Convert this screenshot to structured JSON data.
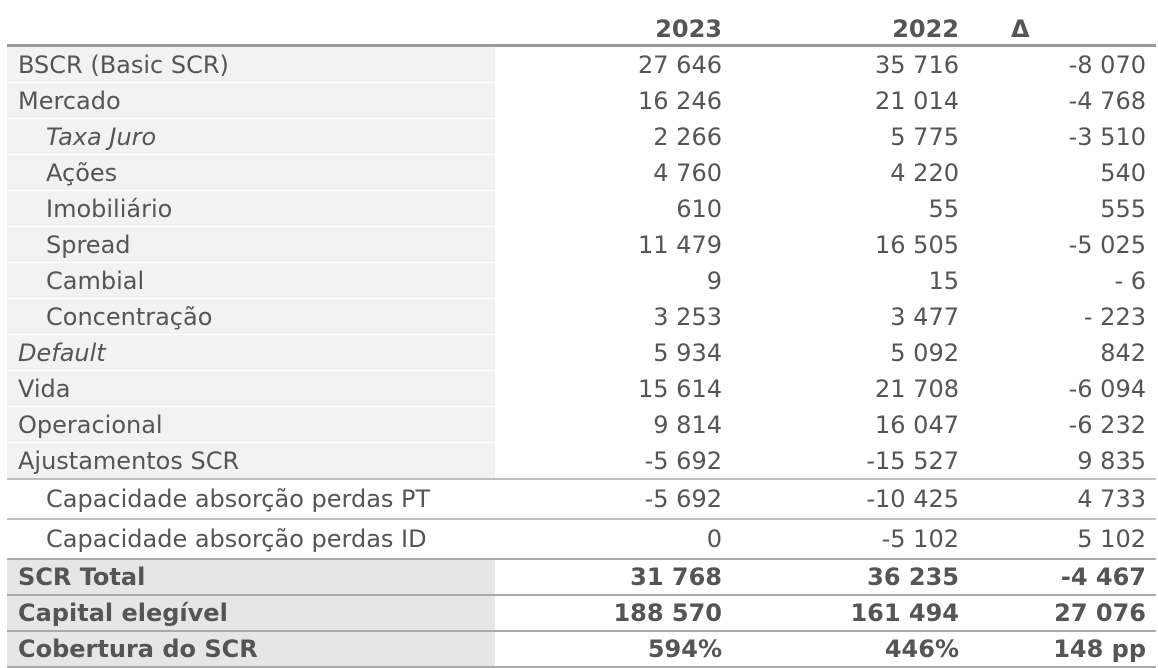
{
  "header": {
    "label": "",
    "y2023": "2023",
    "y2022": "2022",
    "delta": "Δ"
  },
  "rows": [
    {
      "label": "BSCR (Basic SCR)",
      "y2023": "27 646",
      "y2022": "35 716",
      "delta": "-8 070"
    },
    {
      "label": "Mercado",
      "y2023": "16 246",
      "y2022": "21 014",
      "delta": "-4 768"
    },
    {
      "label": "Taxa Juro",
      "y2023": "2 266",
      "y2022": "5 775",
      "delta": "-3 510"
    },
    {
      "label": "Ações",
      "y2023": "4 760",
      "y2022": "4 220",
      "delta": "540"
    },
    {
      "label": "Imobiliário",
      "y2023": "610",
      "y2022": "55",
      "delta": "555"
    },
    {
      "label": "Spread",
      "y2023": "11 479",
      "y2022": "16 505",
      "delta": "-5 025"
    },
    {
      "label": "Cambial",
      "y2023": "9",
      "y2022": "15",
      "delta": "- 6"
    },
    {
      "label": "Concentração",
      "y2023": "3 253",
      "y2022": "3 477",
      "delta": "- 223"
    },
    {
      "label": "Default",
      "y2023": "5 934",
      "y2022": "5 092",
      "delta": "842"
    },
    {
      "label": "Vida",
      "y2023": "15 614",
      "y2022": "21 708",
      "delta": "-6 094"
    },
    {
      "label": "Operacional",
      "y2023": "9 814",
      "y2022": "16 047",
      "delta": "-6 232"
    },
    {
      "label": "Ajustamentos SCR",
      "y2023": "-5 692",
      "y2022": "-15 527",
      "delta": "9 835"
    },
    {
      "label": "Capacidade absorção perdas PT",
      "y2023": "-5 692",
      "y2022": "-10 425",
      "delta": "4 733"
    },
    {
      "label": "Capacidade absorção perdas ID",
      "y2023": "0",
      "y2022": "-5 102",
      "delta": "5 102"
    },
    {
      "label": "SCR Total",
      "y2023": "31 768",
      "y2022": "36 235",
      "delta": "-4 467"
    },
    {
      "label": "Capital elegível",
      "y2023": "188 570",
      "y2022": "161 494",
      "delta": "27 076"
    },
    {
      "label": "Cobertura do SCR",
      "y2023": "594%",
      "y2022": "446%",
      "delta": "148 pp"
    }
  ]
}
